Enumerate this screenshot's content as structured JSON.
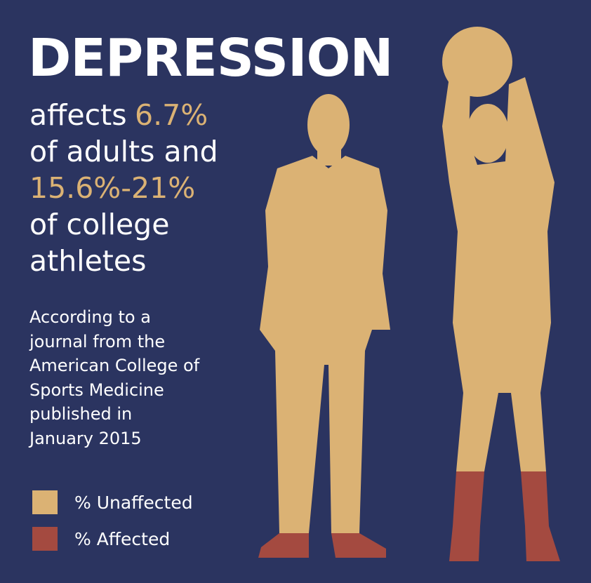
{
  "title": "DEPRESSION",
  "headline": {
    "line1": [
      "affects",
      "6.7%"
    ],
    "line2": "of adults and",
    "line3": "15.6%-21%",
    "line4": "of college",
    "line5": "athletes"
  },
  "source": [
    "According to a",
    "journal from the",
    "American College of",
    "Sports Medicine",
    "published in",
    "January 2015"
  ],
  "legend": [
    {
      "label": "% Unaffected",
      "color": "#dbb274"
    },
    {
      "label": "% Affected",
      "color": "#a44a40"
    }
  ]
}
